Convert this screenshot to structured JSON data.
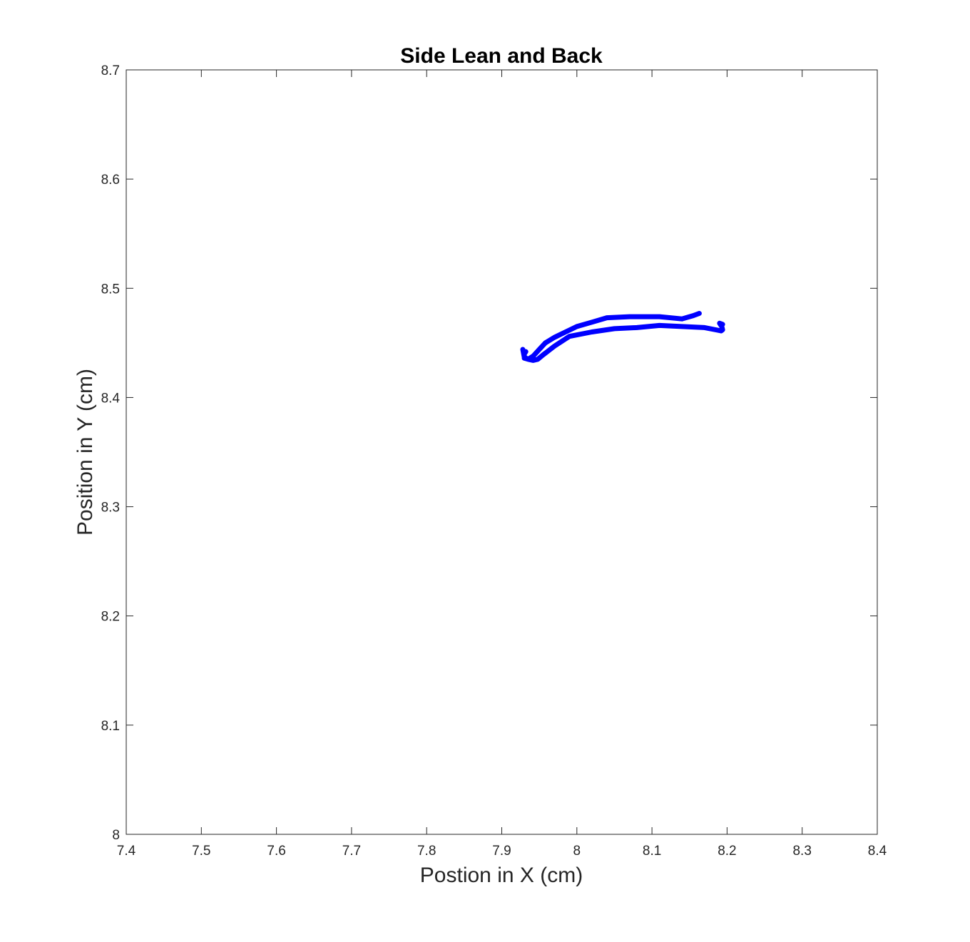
{
  "chart_data": {
    "type": "line",
    "title": "Side Lean and Back",
    "xlabel": "Postion in X (cm)",
    "ylabel": "Position in Y (cm)",
    "xlim": [
      7.4,
      8.4
    ],
    "ylim": [
      8.0,
      8.7
    ],
    "xticks": [
      "7.4",
      "7.5",
      "7.6",
      "7.7",
      "7.8",
      "7.9",
      "8",
      "8.1",
      "8.2",
      "8.3",
      "8.4"
    ],
    "yticks": [
      "8",
      "8.1",
      "8.2",
      "8.3",
      "8.4",
      "8.5",
      "8.6",
      "8.7"
    ],
    "grid": false,
    "series": [
      {
        "color": "#0000ff",
        "x": [
          8.163,
          8.155,
          8.14,
          8.11,
          8.07,
          8.04,
          8.02,
          8.0,
          7.985,
          7.97,
          7.958,
          7.95,
          7.942,
          7.935,
          7.93,
          7.93,
          7.932,
          7.93,
          7.928,
          7.93,
          7.935,
          7.942,
          7.948,
          7.955,
          7.97,
          7.99,
          8.02,
          8.05,
          8.08,
          8.11,
          8.14,
          8.17,
          8.185,
          8.192,
          8.194,
          8.193,
          8.19,
          8.194
        ],
        "y": [
          8.477,
          8.475,
          8.472,
          8.474,
          8.474,
          8.473,
          8.469,
          8.465,
          8.46,
          8.455,
          8.45,
          8.444,
          8.438,
          8.435,
          8.436,
          8.44,
          8.442,
          8.44,
          8.444,
          8.437,
          8.435,
          8.434,
          8.435,
          8.439,
          8.447,
          8.456,
          8.46,
          8.463,
          8.464,
          8.466,
          8.465,
          8.464,
          8.462,
          8.461,
          8.462,
          8.465,
          8.468,
          8.467
        ]
      }
    ]
  }
}
